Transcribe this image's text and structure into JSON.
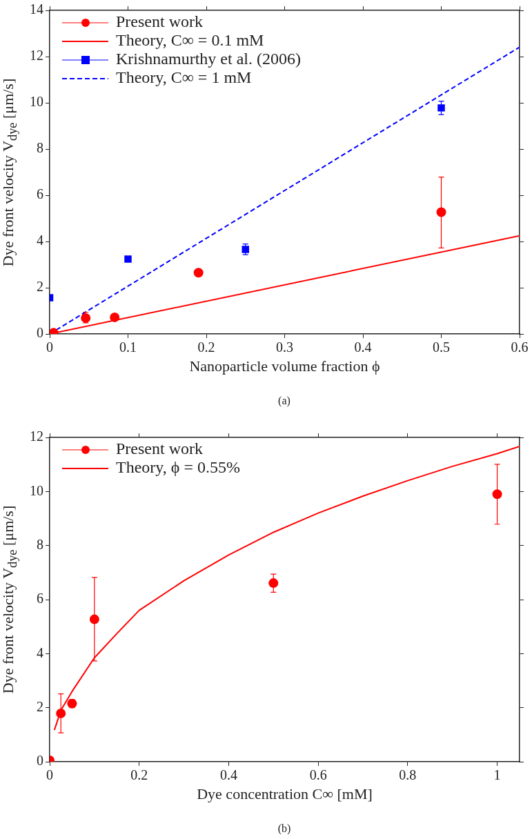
{
  "chart_data": [
    {
      "type": "scatter",
      "xlabel": "Nanoparticle volume fraction ϕ",
      "ylabel": "Dye front velocity V$_{dye}$ [μm/s]",
      "xlim": [
        0,
        0.6
      ],
      "ylim": [
        0,
        14
      ],
      "xticks": [
        0,
        0.1,
        0.2,
        0.3,
        0.4,
        0.5,
        0.6
      ],
      "yticks": [
        0,
        2,
        4,
        6,
        8,
        10,
        12,
        14
      ],
      "legend": "top left",
      "annotations": [
        "(a)"
      ],
      "series": [
        {
          "name": "Present work",
          "type": "scatter",
          "marker": "circle",
          "color": "#ff0000",
          "x": [
            0.005,
            0.046,
            0.083,
            0.19,
            0.5
          ],
          "values": [
            0.05,
            0.69,
            0.72,
            2.65,
            5.27
          ],
          "errors": [
            null,
            [
              0.48,
              0.94
            ],
            null,
            null,
            [
              3.72,
              6.79
            ]
          ]
        },
        {
          "name": "Theory, C∞ = 0.1 mM",
          "type": "line",
          "marker": "none",
          "line_style": "solid",
          "color": "#ff0000",
          "x": [
            0,
            0.6
          ],
          "values": [
            0,
            4.25
          ]
        },
        {
          "name": "Krishnamurthy et al. (2006)",
          "type": "scatter",
          "marker": "square",
          "color": "#0000ff",
          "x": [
            0,
            0.1,
            0.25,
            0.5
          ],
          "values": [
            1.57,
            3.24,
            3.66,
            9.78
          ],
          "errors": [
            null,
            null,
            [
              3.43,
              3.89
            ],
            [
              9.49,
              10.07
            ]
          ]
        },
        {
          "name": "Theory, C∞ = 1 mM",
          "type": "line",
          "marker": "none",
          "line_style": "dashed",
          "color": "#0000ff",
          "x": [
            0,
            0.6
          ],
          "values": [
            0,
            12.41
          ]
        }
      ]
    },
    {
      "type": "scatter",
      "xlabel": "Dye concentration C∞ [mM]",
      "ylabel": "Dye front velocity V$_{dye}$ [μm/s]",
      "xlim": [
        0,
        1.05
      ],
      "ylim": [
        0,
        12
      ],
      "xticks": [
        0,
        0.2,
        0.4,
        0.6,
        0.8,
        1
      ],
      "yticks": [
        0,
        2,
        4,
        6,
        8,
        10,
        12
      ],
      "legend": "top left",
      "annotations": [
        "(b)"
      ],
      "series": [
        {
          "name": "Present work",
          "type": "scatter",
          "marker": "circle",
          "color": "#ff0000",
          "x": [
            0,
            0.025,
            0.05,
            0.1,
            0.5,
            1
          ],
          "values": [
            0.05,
            1.79,
            2.15,
            5.27,
            6.61,
            9.9
          ],
          "errors": [
            null,
            [
              1.07,
              2.51
            ],
            [
              2.01,
              2.3
            ],
            [
              3.73,
              6.82
            ],
            [
              6.27,
              6.94
            ],
            [
              8.79,
              11.01
            ]
          ]
        },
        {
          "name": "Theory, ϕ = 0.55%",
          "type": "line",
          "marker": "none",
          "line_style": "solid",
          "color": "#ff0000",
          "x": [
            0.0105,
            0.025,
            0.05,
            0.1,
            0.15,
            0.2,
            0.3,
            0.4,
            0.5,
            0.6,
            0.7,
            0.8,
            0.9,
            1,
            1.05
          ],
          "values": [
            1.17,
            1.9,
            2.6,
            3.85,
            4.74,
            5.6,
            6.7,
            7.65,
            8.49,
            9.2,
            9.83,
            10.4,
            10.93,
            11.4,
            11.67
          ]
        }
      ]
    }
  ]
}
